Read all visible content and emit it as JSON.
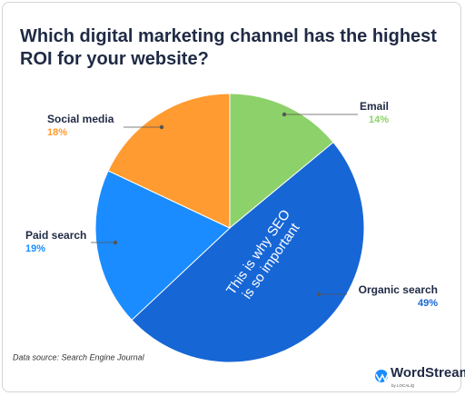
{
  "chart_data": {
    "type": "pie",
    "title": "Which digital marketing channel has the highest ROI for your website?",
    "categories": [
      "Email",
      "Organic search",
      "Paid search",
      "Social media"
    ],
    "values": [
      14,
      49,
      19,
      18
    ],
    "value_labels": [
      "14%",
      "49%",
      "19%",
      "18%"
    ],
    "colors": [
      "#8dd16a",
      "#1766d6",
      "#1a8cff",
      "#ff9b30"
    ],
    "annotation": [
      "This is why SEO",
      "is so important"
    ],
    "source": "Data source: Search Engine Journal",
    "brand": "WordStream",
    "brand_sub": "by LOCALiQ"
  }
}
